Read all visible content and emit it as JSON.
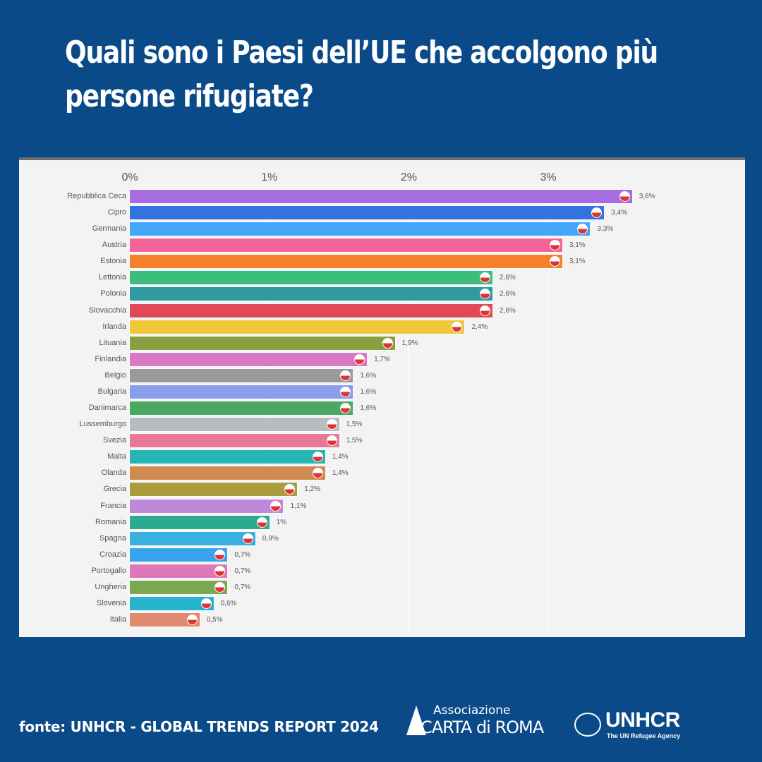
{
  "title": "Quali sono i Paesi dell’UE che accolgono più persone rifugiate?",
  "source": "fonte: UNHCR - GLOBAL TRENDS REPORT 2024",
  "logos": {
    "carta_top": "Associazione",
    "carta_bottom": "CARTA di ROMA",
    "unhcr": "UNHCR",
    "unhcr_sub": "The UN Refugee Agency"
  },
  "chart_data": {
    "type": "bar",
    "orientation": "horizontal",
    "title": "Quali sono i Paesi dell’UE che accolgono più persone rifugiate?",
    "xlabel": "",
    "ylabel": "",
    "xlim": [
      0,
      3.6
    ],
    "ticks": [
      0,
      1,
      2,
      3
    ],
    "tick_labels": [
      "0%",
      "1%",
      "2%",
      "3%"
    ],
    "grid": true,
    "categories": [
      "Repubblica Ceca",
      "Cipro",
      "Germania",
      "Austria",
      "Estonia",
      "Lettonia",
      "Polonia",
      "Slovacchia",
      "Irlanda",
      "Lituania",
      "Finlandia",
      "Belgio",
      "Bulgaria",
      "Danimarca",
      "Lussemburgo",
      "Svezia",
      "Malta",
      "Olanda",
      "Grecia",
      "Francia",
      "Romania",
      "Spagna",
      "Croazia",
      "Portogallo",
      "Ungheria",
      "Slovenia",
      "Italia"
    ],
    "values": [
      3.6,
      3.4,
      3.3,
      3.1,
      3.1,
      2.6,
      2.6,
      2.6,
      2.4,
      1.9,
      1.7,
      1.6,
      1.6,
      1.6,
      1.5,
      1.5,
      1.4,
      1.4,
      1.2,
      1.1,
      1,
      0.9,
      0.7,
      0.7,
      0.7,
      0.6,
      0.5
    ],
    "value_labels": [
      "3,6%",
      "3,4%",
      "3,3%",
      "3,1%",
      "3,1%",
      "2,6%",
      "2,6%",
      "2,6%",
      "2,4%",
      "1,9%",
      "1,7%",
      "1,6%",
      "1,6%",
      "1,6%",
      "1,5%",
      "1,5%",
      "1,4%",
      "1,4%",
      "1,2%",
      "1,1%",
      "1%",
      "0,9%",
      "0,7%",
      "0,7%",
      "0,7%",
      "0,6%",
      "0,5%"
    ],
    "colors": [
      "#a66ce0",
      "#3472e0",
      "#44a6f8",
      "#f4649a",
      "#f6802a",
      "#3cbd7c",
      "#2f9aa0",
      "#e04a58",
      "#f0c63a",
      "#8aa040",
      "#d878c4",
      "#9a9a9a",
      "#8a9cec",
      "#4aa860",
      "#b8bcc0",
      "#e87898",
      "#26b4b4",
      "#d08a50",
      "#aa9c3c",
      "#c088d8",
      "#2aaa90",
      "#3ab0e0",
      "#38a4ee",
      "#dc78b8",
      "#78a850",
      "#28b4d0",
      "#e08a70"
    ]
  }
}
